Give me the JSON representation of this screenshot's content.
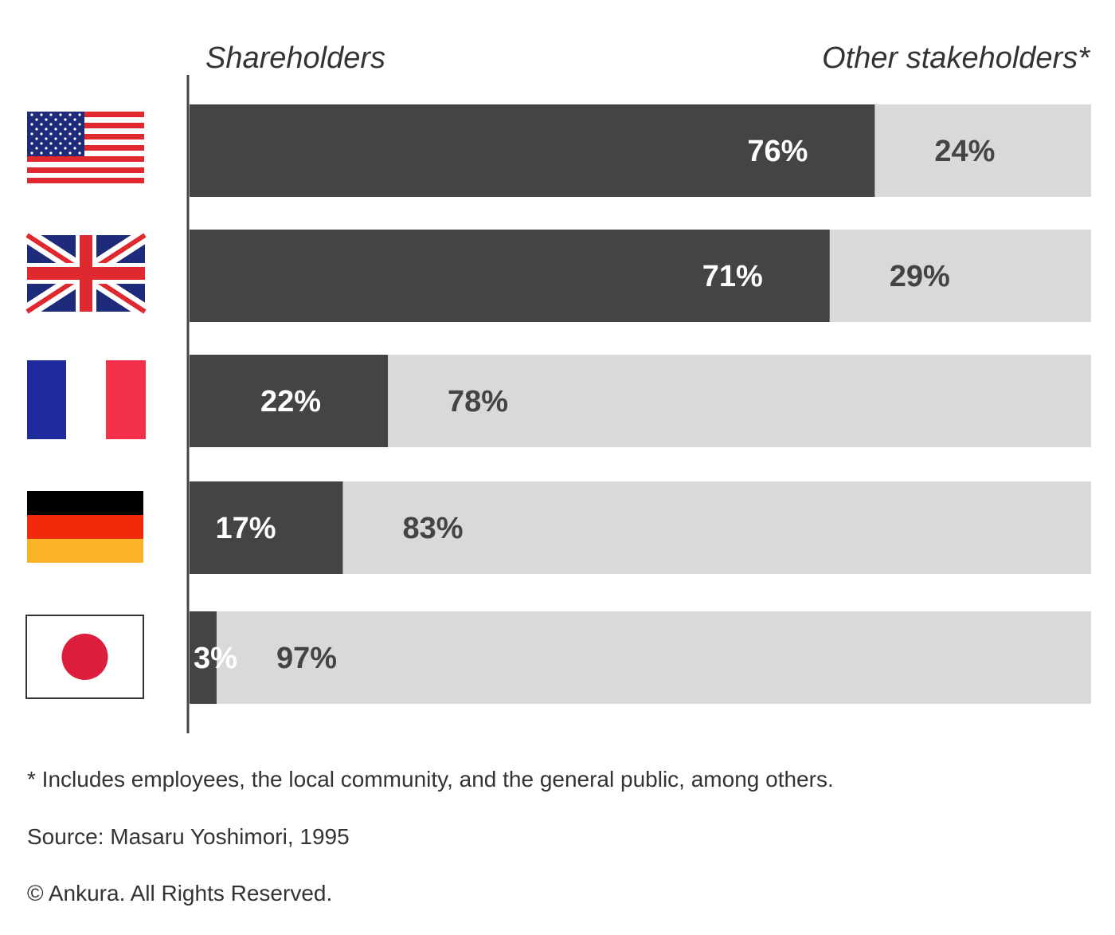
{
  "chart_data": {
    "type": "bar",
    "orientation": "horizontal",
    "stacked": true,
    "series": [
      {
        "name": "Shareholders",
        "values": [
          76,
          71,
          22,
          17,
          3
        ]
      },
      {
        "name": "Other stakeholders*",
        "values": [
          24,
          29,
          78,
          83,
          97
        ]
      }
    ],
    "categories": [
      "United States",
      "United Kingdom",
      "France",
      "Germany",
      "Japan"
    ],
    "value_labels": {
      "shareholders": [
        "76%",
        "71%",
        "22%",
        "17%",
        "3%"
      ],
      "others": [
        "24%",
        "29%",
        "78%",
        "83%",
        "97%"
      ]
    },
    "xlim": [
      0,
      100
    ],
    "grid": false,
    "legend": "top (series names above left and right ends of bars)"
  },
  "header": {
    "left_label": "Shareholders",
    "right_label": "Other stakeholders*"
  },
  "notes": {
    "footnote": "* Includes employees, the local community, and the general public, among others.",
    "source": "Source: Masaru Yoshimori, 1995",
    "copyright": "© Ankura. All Rights Reserved."
  },
  "flags": [
    {
      "icon": "us-flag-icon"
    },
    {
      "icon": "uk-flag-icon"
    },
    {
      "icon": "france-flag-icon"
    },
    {
      "icon": "germany-flag-icon"
    },
    {
      "icon": "japan-flag-icon"
    }
  ],
  "colors": {
    "shareholders": "#444444",
    "others": "#d9d9d9",
    "label_dark_bg": "#ffffff",
    "label_light_bg": "#444444",
    "axis": "#444444"
  }
}
